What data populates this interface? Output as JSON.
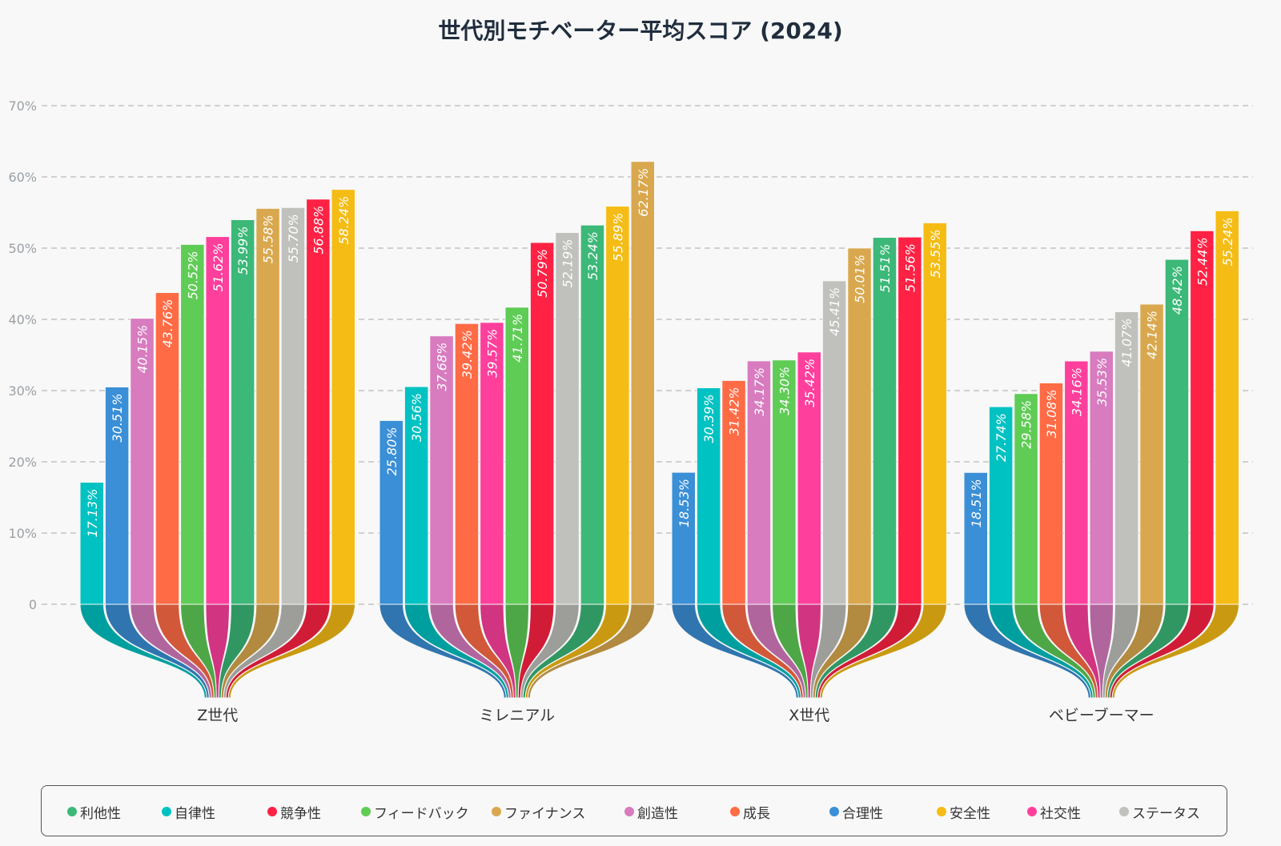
{
  "chart_data": {
    "type": "bar",
    "title": "世代別モチベーター平均スコア (2024)",
    "xlabel": "",
    "ylabel": "",
    "ylim": [
      0,
      70
    ],
    "yticks": [
      "0",
      "10%",
      "20%",
      "30%",
      "40%",
      "50%",
      "60%",
      "70%"
    ],
    "grid": true,
    "legend_position": "bottom",
    "categories": [
      "Z世代",
      "ミレニアル",
      "X世代",
      "ベビーブーマー"
    ],
    "series_colors": {
      "利他性": "#3cb878",
      "自律性": "#00c2c2",
      "競争性": "#ff2244",
      "フィードバック": "#5fcc55",
      "ファイナンス": "#d9a84e",
      "創造性": "#d87bbf",
      "成長": "#ff6b45",
      "合理性": "#3a8fd6",
      "安全性": "#f5bc15",
      "社交性": "#ff3f9c",
      "ステータス": "#c0c0bc"
    },
    "groups": [
      {
        "category": "Z世代",
        "bars": [
          {
            "series": "自律性",
            "value": 17.13,
            "label": "17.13%"
          },
          {
            "series": "合理性",
            "value": 30.51,
            "label": "30.51%"
          },
          {
            "series": "創造性",
            "value": 40.15,
            "label": "40.15%"
          },
          {
            "series": "成長",
            "value": 43.76,
            "label": "43.76%"
          },
          {
            "series": "フィードバック",
            "value": 50.52,
            "label": "50.52%"
          },
          {
            "series": "社交性",
            "value": 51.62,
            "label": "51.62%"
          },
          {
            "series": "利他性",
            "value": 53.99,
            "label": "53.99%"
          },
          {
            "series": "ファイナンス",
            "value": 55.58,
            "label": "55.58%"
          },
          {
            "series": "ステータス",
            "value": 55.7,
            "label": "55.70%"
          },
          {
            "series": "競争性",
            "value": 56.88,
            "label": "56.88%"
          },
          {
            "series": "安全性",
            "value": 58.24,
            "label": "58.24%"
          }
        ]
      },
      {
        "category": "ミレニアル",
        "bars": [
          {
            "series": "合理性",
            "value": 25.8,
            "label": "25.80%"
          },
          {
            "series": "自律性",
            "value": 30.56,
            "label": "30.56%"
          },
          {
            "series": "創造性",
            "value": 37.68,
            "label": "37.68%"
          },
          {
            "series": "成長",
            "value": 39.42,
            "label": "39.42%"
          },
          {
            "series": "社交性",
            "value": 39.57,
            "label": "39.57%"
          },
          {
            "series": "フィードバック",
            "value": 41.71,
            "label": "41.71%"
          },
          {
            "series": "競争性",
            "value": 50.79,
            "label": "50.79%"
          },
          {
            "series": "ステータス",
            "value": 52.19,
            "label": "52.19%"
          },
          {
            "series": "利他性",
            "value": 53.24,
            "label": "53.24%"
          },
          {
            "series": "安全性",
            "value": 55.89,
            "label": "55.89%"
          },
          {
            "series": "ファイナンス",
            "value": 62.17,
            "label": "62.17%"
          }
        ]
      },
      {
        "category": "X世代",
        "bars": [
          {
            "series": "合理性",
            "value": 18.53,
            "label": "18.53%"
          },
          {
            "series": "自律性",
            "value": 30.39,
            "label": "30.39%"
          },
          {
            "series": "成長",
            "value": 31.42,
            "label": "31.42%"
          },
          {
            "series": "創造性",
            "value": 34.17,
            "label": "34.17%"
          },
          {
            "series": "フィードバック",
            "value": 34.3,
            "label": "34.30%"
          },
          {
            "series": "社交性",
            "value": 35.42,
            "label": "35.42%"
          },
          {
            "series": "ステータス",
            "value": 45.41,
            "label": "45.41%"
          },
          {
            "series": "ファイナンス",
            "value": 50.01,
            "label": "50.01%"
          },
          {
            "series": "利他性",
            "value": 51.51,
            "label": "51.51%"
          },
          {
            "series": "競争性",
            "value": 51.56,
            "label": "51.56%"
          },
          {
            "series": "安全性",
            "value": 53.55,
            "label": "53.55%"
          }
        ]
      },
      {
        "category": "ベビーブーマー",
        "bars": [
          {
            "series": "合理性",
            "value": 18.51,
            "label": "18.51%"
          },
          {
            "series": "自律性",
            "value": 27.74,
            "label": "27.74%"
          },
          {
            "series": "フィードバック",
            "value": 29.58,
            "label": "29.58%"
          },
          {
            "series": "成長",
            "value": 31.08,
            "label": "31.08%"
          },
          {
            "series": "社交性",
            "value": 34.16,
            "label": "34.16%"
          },
          {
            "series": "創造性",
            "value": 35.53,
            "label": "35.53%"
          },
          {
            "series": "ステータス",
            "value": 41.07,
            "label": "41.07%"
          },
          {
            "series": "ファイナンス",
            "value": 42.14,
            "label": "42.14%"
          },
          {
            "series": "利他性",
            "value": 48.42,
            "label": "48.42%"
          },
          {
            "series": "競争性",
            "value": 52.44,
            "label": "52.44%"
          },
          {
            "series": "安全性",
            "value": 55.24,
            "label": "55.24%"
          }
        ]
      }
    ]
  },
  "legend": {
    "items": [
      {
        "label": "利他性",
        "color": "#3cb878"
      },
      {
        "label": "自律性",
        "color": "#00c2c2"
      },
      {
        "label": "競争性",
        "color": "#ff2244"
      },
      {
        "label": "フィードバック",
        "color": "#5fcc55"
      },
      {
        "label": "ファイナンス",
        "color": "#d9a84e"
      },
      {
        "label": "創造性",
        "color": "#d87bbf"
      },
      {
        "label": "成長",
        "color": "#ff6b45"
      },
      {
        "label": "合理性",
        "color": "#3a8fd6"
      },
      {
        "label": "安全性",
        "color": "#f5bc15"
      },
      {
        "label": "社交性",
        "color": "#ff3f9c"
      },
      {
        "label": "ステータス",
        "color": "#c0c0bc"
      }
    ]
  }
}
